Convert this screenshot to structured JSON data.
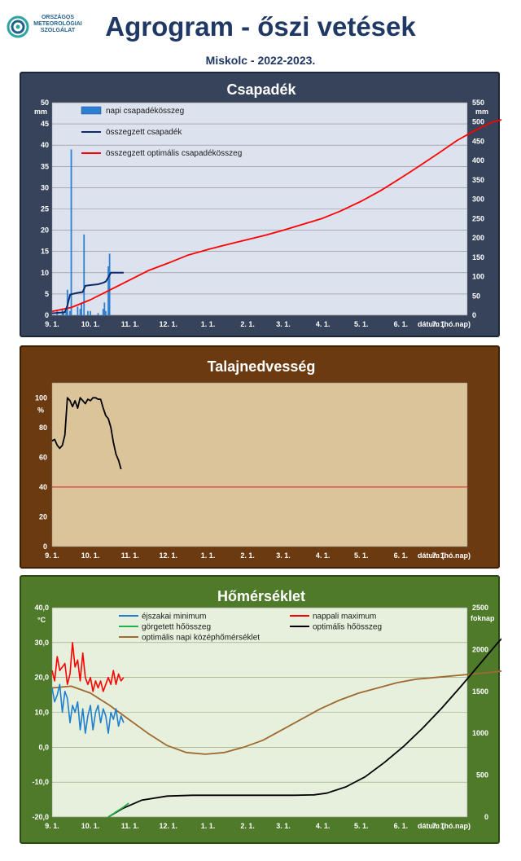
{
  "header": {
    "logo_lines": [
      "ORSZÁGOS",
      "METEOROLÓGIAI",
      "SZOLGÁLAT"
    ],
    "title": "Agrogram - őszi vetések",
    "subtitle": "Miskolc - 2022-2023."
  },
  "colors": {
    "precip_panel": "#36435a",
    "soil_panel": "#6b3a10",
    "temp_panel": "#4e7a2a",
    "precip_plot": "#dde3ee",
    "soil_plot": "#dcc49a",
    "temp_plot": "#e6f0dc",
    "daily_precip": "#2f7fd0",
    "cum_precip": "#0d2a6b",
    "optimal": "#ff0000",
    "night_min": "#1f7fd0",
    "day_max": "#ff0000",
    "rolling_heat": "#22b04a",
    "optimal_heat": "#000000",
    "optimal_daily_mean": "#a0692f"
  },
  "x_axis": {
    "ticks": [
      "9. 1.",
      "10. 1.",
      "11. 1.",
      "12. 1.",
      "1. 1.",
      "2. 1.",
      "3. 1.",
      "4. 1.",
      "5. 1.",
      "6. 1.",
      "7. 1."
    ],
    "label": "dátum (hó.nap)"
  },
  "chart_data": [
    {
      "type": "bar",
      "title": "Csapadék",
      "ylabel": "mm",
      "y2label": "mm",
      "ylim": [
        0,
        50
      ],
      "y2lim": [
        0,
        550
      ],
      "yticks": [
        0,
        5,
        10,
        15,
        20,
        25,
        30,
        35,
        40,
        45,
        50
      ],
      "y2ticks": [
        0,
        50,
        100,
        150,
        200,
        250,
        300,
        350,
        400,
        450,
        500,
        550
      ],
      "legend": [
        "napi csapadékösszeg",
        "összegzett csapadék",
        "összegzett optimális  csapadékösszeg"
      ],
      "daily_precip": [
        {
          "day": 4,
          "value": 1.0
        },
        {
          "day": 8,
          "value": 1.5
        },
        {
          "day": 9,
          "value": 0.5
        },
        {
          "day": 11,
          "value": 1.0
        },
        {
          "day": 12,
          "value": 6.0
        },
        {
          "day": 14,
          "value": 1.0
        },
        {
          "day": 15,
          "value": 39.0
        },
        {
          "day": 20,
          "value": 2.0
        },
        {
          "day": 22,
          "value": 1.5
        },
        {
          "day": 23,
          "value": 3.0
        },
        {
          "day": 25,
          "value": 19.0
        },
        {
          "day": 28,
          "value": 1.0
        },
        {
          "day": 30,
          "value": 1.0
        },
        {
          "day": 36,
          "value": 0.5
        },
        {
          "day": 40,
          "value": 1.5
        },
        {
          "day": 41,
          "value": 3.0
        },
        {
          "day": 42,
          "value": 1.0
        },
        {
          "day": 44,
          "value": 11.5
        },
        {
          "day": 45,
          "value": 14.5
        }
      ],
      "cumulative_precip": [
        [
          0,
          5
        ],
        [
          10,
          8
        ],
        [
          12,
          25
        ],
        [
          14,
          53
        ],
        [
          16,
          55
        ],
        [
          20,
          58
        ],
        [
          24,
          60
        ],
        [
          26,
          76
        ],
        [
          30,
          78
        ],
        [
          36,
          80
        ],
        [
          40,
          84
        ],
        [
          42,
          87
        ],
        [
          44,
          98
        ],
        [
          46,
          110
        ],
        [
          56,
          110
        ]
      ],
      "optimal_cumulative_precip": [
        [
          0,
          10
        ],
        [
          15,
          20
        ],
        [
          30,
          40
        ],
        [
          45,
          65
        ],
        [
          60,
          90
        ],
        [
          75,
          115
        ],
        [
          91,
          135
        ],
        [
          106,
          155
        ],
        [
          122,
          170
        ],
        [
          137,
          183
        ],
        [
          152,
          195
        ],
        [
          167,
          207
        ],
        [
          181,
          220
        ],
        [
          196,
          235
        ],
        [
          211,
          250
        ],
        [
          226,
          270
        ],
        [
          242,
          295
        ],
        [
          257,
          322
        ],
        [
          272,
          353
        ],
        [
          287,
          385
        ],
        [
          302,
          418
        ],
        [
          317,
          452
        ],
        [
          332,
          480
        ],
        [
          345,
          500
        ],
        [
          357,
          510
        ],
        [
          365,
          510
        ]
      ]
    },
    {
      "type": "line",
      "title": "Talajnedvesség",
      "ylabel": "%",
      "ylim": [
        0,
        110
      ],
      "yticks": [
        0,
        20,
        40,
        60,
        80,
        100
      ],
      "soil_moisture": [
        [
          0,
          71
        ],
        [
          2,
          72
        ],
        [
          4,
          68
        ],
        [
          6,
          66
        ],
        [
          8,
          68
        ],
        [
          10,
          75
        ],
        [
          12,
          100
        ],
        [
          14,
          98
        ],
        [
          16,
          94
        ],
        [
          18,
          98
        ],
        [
          20,
          93
        ],
        [
          22,
          100
        ],
        [
          24,
          98
        ],
        [
          26,
          96
        ],
        [
          28,
          99
        ],
        [
          30,
          98
        ],
        [
          32,
          100
        ],
        [
          34,
          100
        ],
        [
          36,
          99
        ],
        [
          38,
          99
        ],
        [
          40,
          93
        ],
        [
          42,
          88
        ],
        [
          44,
          86
        ],
        [
          46,
          80
        ],
        [
          48,
          70
        ],
        [
          50,
          62
        ],
        [
          52,
          58
        ],
        [
          54,
          52
        ]
      ],
      "reference_line": 40
    },
    {
      "type": "line",
      "title": "Hőmérséklet",
      "ylabel": "°C",
      "y2label": "foknap",
      "ylim": [
        -20,
        40
      ],
      "y2lim": [
        0,
        2500
      ],
      "yticks": [
        "-20,0",
        "-10,0",
        "0,0",
        "10,0",
        "20,0",
        "30,0",
        "40,0"
      ],
      "y2ticks": [
        0,
        500,
        1000,
        1500,
        2000,
        2500
      ],
      "legend": [
        "éjszakai minimum",
        "nappali maximum",
        "görgetett hőösszeg",
        "optimális hőösszeg",
        "optimális napi középhőmérséklet"
      ],
      "night_min": [
        [
          0,
          17
        ],
        [
          2,
          13
        ],
        [
          4,
          15
        ],
        [
          6,
          18
        ],
        [
          8,
          10
        ],
        [
          10,
          16
        ],
        [
          12,
          14
        ],
        [
          14,
          7
        ],
        [
          16,
          12
        ],
        [
          18,
          10
        ],
        [
          20,
          13
        ],
        [
          22,
          5
        ],
        [
          24,
          11
        ],
        [
          26,
          4
        ],
        [
          28,
          9
        ],
        [
          30,
          12
        ],
        [
          32,
          5
        ],
        [
          34,
          10
        ],
        [
          36,
          12
        ],
        [
          38,
          7
        ],
        [
          40,
          11
        ],
        [
          42,
          9
        ],
        [
          44,
          4
        ],
        [
          46,
          10
        ],
        [
          48,
          8
        ],
        [
          50,
          11
        ],
        [
          52,
          6
        ],
        [
          54,
          9
        ],
        [
          56,
          7
        ]
      ],
      "day_max": [
        [
          0,
          22
        ],
        [
          2,
          19
        ],
        [
          4,
          26
        ],
        [
          6,
          22
        ],
        [
          8,
          23
        ],
        [
          10,
          24
        ],
        [
          12,
          18
        ],
        [
          14,
          21
        ],
        [
          16,
          30
        ],
        [
          18,
          23
        ],
        [
          20,
          25
        ],
        [
          22,
          19
        ],
        [
          24,
          27
        ],
        [
          26,
          20
        ],
        [
          28,
          18
        ],
        [
          30,
          20
        ],
        [
          32,
          16
        ],
        [
          34,
          19
        ],
        [
          36,
          17
        ],
        [
          38,
          19
        ],
        [
          40,
          16
        ],
        [
          42,
          18
        ],
        [
          44,
          20
        ],
        [
          46,
          18
        ],
        [
          48,
          22
        ],
        [
          50,
          18
        ],
        [
          52,
          21
        ],
        [
          54,
          19
        ],
        [
          56,
          20
        ]
      ],
      "rolling_heat_sum": [
        [
          44,
          0
        ],
        [
          50,
          60
        ],
        [
          56,
          120
        ],
        [
          60,
          165
        ]
      ],
      "optimal_heat_sum": [
        [
          44,
          0
        ],
        [
          55,
          100
        ],
        [
          70,
          200
        ],
        [
          90,
          250
        ],
        [
          110,
          260
        ],
        [
          130,
          260
        ],
        [
          150,
          260
        ],
        [
          170,
          260
        ],
        [
          190,
          260
        ],
        [
          205,
          265
        ],
        [
          215,
          285
        ],
        [
          230,
          360
        ],
        [
          245,
          480
        ],
        [
          260,
          650
        ],
        [
          275,
          840
        ],
        [
          290,
          1060
        ],
        [
          305,
          1300
        ],
        [
          320,
          1560
        ],
        [
          335,
          1830
        ],
        [
          350,
          2100
        ],
        [
          365,
          2320
        ]
      ],
      "optimal_daily_mean": [
        [
          0,
          17
        ],
        [
          15,
          17.5
        ],
        [
          30,
          15.5
        ],
        [
          45,
          12
        ],
        [
          60,
          8
        ],
        [
          75,
          4
        ],
        [
          90,
          0.5
        ],
        [
          105,
          -1.5
        ],
        [
          120,
          -2
        ],
        [
          135,
          -1.5
        ],
        [
          150,
          0
        ],
        [
          165,
          2
        ],
        [
          180,
          5
        ],
        [
          195,
          8
        ],
        [
          210,
          11
        ],
        [
          225,
          13.5
        ],
        [
          240,
          15.5
        ],
        [
          255,
          17
        ],
        [
          270,
          18.5
        ],
        [
          285,
          19.5
        ],
        [
          300,
          20
        ],
        [
          315,
          20.5
        ],
        [
          330,
          21
        ],
        [
          345,
          21.5
        ],
        [
          365,
          22.5
        ]
      ]
    }
  ]
}
